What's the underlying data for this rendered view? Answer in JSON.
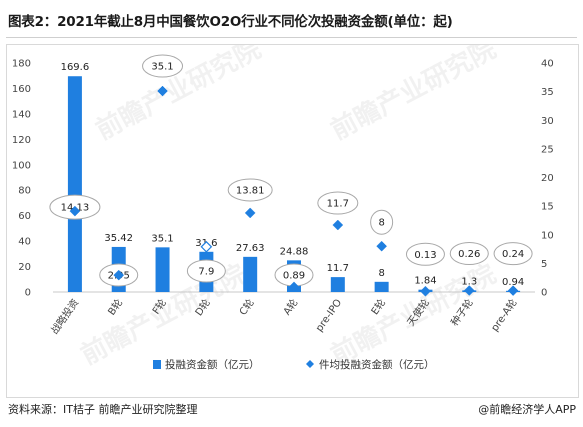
{
  "title": "图表2：2021年截止8月中国餐饮O2O行业不同伦次投融资金额(单位：起)",
  "footer": {
    "source": "资料来源：IT桔子 前瞻产业研究院整理",
    "brand": "@前瞻经济学人APP"
  },
  "watermark": "前瞻产业研究院",
  "colors": {
    "bar": "#1f7fe0",
    "point": "#1f7fe0",
    "axis": "#444444",
    "bubble_stroke": "#a8a8a8"
  },
  "chart_data": {
    "type": "bar",
    "categories": [
      "战略投资",
      "B轮",
      "F轮",
      "D轮",
      "C轮",
      "A轮",
      "pre-IPO",
      "E轮",
      "天使轮",
      "种子轮",
      "pre-A轮"
    ],
    "series": [
      {
        "name": "投融资金额（亿元）",
        "type": "bar",
        "axis": "left",
        "values": [
          169.6,
          35.42,
          35.1,
          31.6,
          27.63,
          24.88,
          11.7,
          8,
          1.84,
          1.3,
          0.94
        ],
        "labels": [
          "169.6",
          "35.42",
          "35.1",
          "31.6",
          "27.63",
          "24.88",
          "11.7",
          "8",
          "1.84",
          "1.3",
          "0.94"
        ]
      },
      {
        "name": "件均投融资金额（亿元）",
        "type": "scatter",
        "axis": "right",
        "values": [
          14.13,
          2.95,
          35.1,
          7.9,
          13.81,
          0.89,
          11.7,
          8,
          0.13,
          0.26,
          0.24
        ],
        "labels": [
          "14.13",
          "2.95",
          "35.1",
          "7.9",
          "13.81",
          "0.89",
          "11.7",
          "8",
          "0.13",
          "0.26",
          "0.24"
        ]
      }
    ],
    "y_left": {
      "min": 0,
      "max": 180,
      "ticks": [
        "0",
        "20",
        "40",
        "60",
        "80",
        "100",
        "120",
        "140",
        "160",
        "180"
      ]
    },
    "y_right": {
      "min": 0,
      "max": 40,
      "ticks": [
        "0",
        "5",
        "10",
        "15",
        "20",
        "25",
        "30",
        "35",
        "40"
      ]
    },
    "legend": {
      "position": "bottom"
    },
    "grid": false
  }
}
